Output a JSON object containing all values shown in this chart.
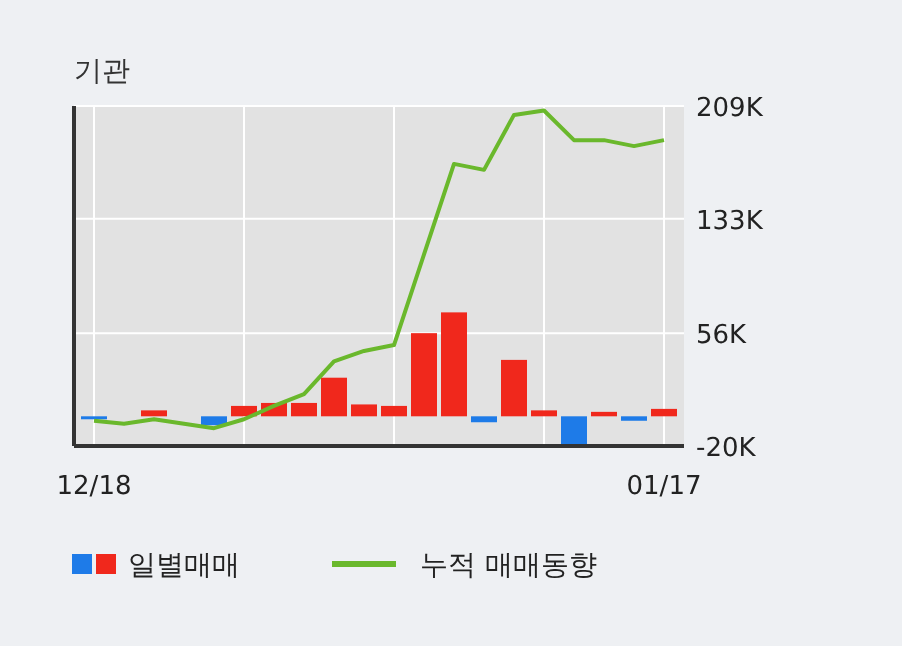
{
  "chart_data": {
    "type": "bar",
    "title": "기관",
    "categories": [
      "12/18",
      null,
      null,
      null,
      null,
      null,
      null,
      null,
      null,
      null,
      null,
      null,
      null,
      null,
      null,
      null,
      null,
      null,
      null,
      "01/17"
    ],
    "series": [
      {
        "name": "일별매매",
        "values": [
          -2000,
          0,
          4000,
          0,
          -6000,
          7000,
          9000,
          9000,
          26000,
          8000,
          7000,
          56000,
          70000,
          -4000,
          38000,
          4000,
          -19000,
          3000,
          -3000,
          5000
        ],
        "colors": [
          "#1e7be8",
          "#1e7be8",
          "#f0281c",
          "#f0281c",
          "#1e7be8",
          "#f0281c",
          "#f0281c",
          "#f0281c",
          "#f0281c",
          "#f0281c",
          "#f0281c",
          "#f0281c",
          "#f0281c",
          "#1e7be8",
          "#f0281c",
          "#f0281c",
          "#1e7be8",
          "#f0281c",
          "#1e7be8",
          "#f0281c"
        ]
      },
      {
        "name": "누적 매매동향",
        "type": "line",
        "color": "#6ab82c",
        "values": [
          -3000,
          -5000,
          -2000,
          -5000,
          -8000,
          -2000,
          7000,
          15000,
          37000,
          44000,
          48000,
          109000,
          170000,
          166000,
          203000,
          206000,
          186000,
          186000,
          182000,
          186000
        ]
      }
    ],
    "ylim": [
      -20000,
      209000
    ],
    "yticks": [
      {
        "value": -20000,
        "label": "-20K"
      },
      {
        "value": 56000,
        "label": "56K"
      },
      {
        "value": 133000,
        "label": "133K"
      },
      {
        "value": 209000,
        "label": "209K"
      }
    ],
    "grid": true,
    "legend": "bottom"
  }
}
